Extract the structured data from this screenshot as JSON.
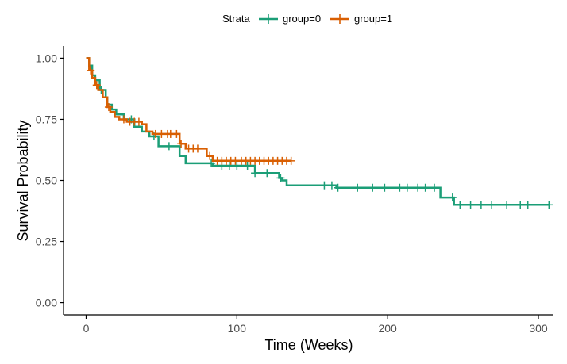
{
  "chart_data": {
    "type": "line",
    "step": true,
    "xlabel": "Time (Weeks)",
    "ylabel": "Survival Probability",
    "xlim": [
      -15,
      310
    ],
    "ylim": [
      -0.05,
      1.05
    ],
    "xticks": [
      0,
      100,
      200,
      300
    ],
    "yticks": [
      0.0,
      0.25,
      0.5,
      0.75,
      1.0
    ],
    "xtick_labels": [
      "0",
      "100",
      "200",
      "300"
    ],
    "ytick_labels": [
      "0.00",
      "0.25",
      "0.50",
      "0.75",
      "1.00"
    ],
    "grid": false,
    "legend": {
      "title": "Strata",
      "position": "top",
      "entries": [
        {
          "label": "group=0",
          "color": "#1b9e77"
        },
        {
          "label": "group=1",
          "color": "#d95f02"
        }
      ]
    },
    "series": [
      {
        "name": "group=0",
        "color": "#1b9e77",
        "steps": [
          [
            0,
            1.0
          ],
          [
            2,
            0.97
          ],
          [
            4,
            0.93
          ],
          [
            6,
            0.91
          ],
          [
            9,
            0.87
          ],
          [
            13,
            0.84
          ],
          [
            14,
            0.81
          ],
          [
            17,
            0.79
          ],
          [
            20,
            0.77
          ],
          [
            25,
            0.75
          ],
          [
            32,
            0.72
          ],
          [
            37,
            0.7
          ],
          [
            42,
            0.68
          ],
          [
            48,
            0.64
          ],
          [
            58,
            0.64
          ],
          [
            62,
            0.6
          ],
          [
            66,
            0.57
          ],
          [
            78,
            0.57
          ],
          [
            84,
            0.56
          ],
          [
            102,
            0.56
          ],
          [
            112,
            0.53
          ],
          [
            124,
            0.53
          ],
          [
            128,
            0.51
          ],
          [
            130,
            0.5
          ],
          [
            133,
            0.48
          ],
          [
            160,
            0.48
          ],
          [
            166,
            0.47
          ],
          [
            230,
            0.47
          ],
          [
            235,
            0.43
          ],
          [
            244,
            0.4
          ],
          [
            307,
            0.4
          ]
        ],
        "censor_times": [
          10,
          30,
          45,
          55,
          83,
          90,
          95,
          100,
          107,
          112,
          120,
          129,
          158,
          163,
          167,
          180,
          190,
          198,
          208,
          213,
          220,
          225,
          231,
          243,
          248,
          255,
          262,
          269,
          279,
          288,
          293,
          307
        ]
      },
      {
        "name": "group=1",
        "color": "#d95f02",
        "steps": [
          [
            0,
            1.0
          ],
          [
            2,
            0.95
          ],
          [
            4,
            0.92
          ],
          [
            6,
            0.89
          ],
          [
            8,
            0.87
          ],
          [
            11,
            0.84
          ],
          [
            14,
            0.8
          ],
          [
            16,
            0.78
          ],
          [
            19,
            0.76
          ],
          [
            22,
            0.75
          ],
          [
            27,
            0.74
          ],
          [
            37,
            0.73
          ],
          [
            40,
            0.7
          ],
          [
            44,
            0.69
          ],
          [
            58,
            0.69
          ],
          [
            62,
            0.65
          ],
          [
            66,
            0.63
          ],
          [
            76,
            0.63
          ],
          [
            80,
            0.6
          ],
          [
            84,
            0.58
          ],
          [
            136,
            0.58
          ]
        ],
        "censor_times": [
          3,
          7,
          15,
          25,
          29,
          32,
          35,
          46,
          50,
          54,
          56,
          60,
          63,
          68,
          71,
          74,
          82,
          87,
          90,
          93,
          96,
          99,
          103,
          106,
          109,
          112,
          115,
          118,
          121,
          124,
          127,
          130,
          133,
          136
        ]
      }
    ]
  }
}
